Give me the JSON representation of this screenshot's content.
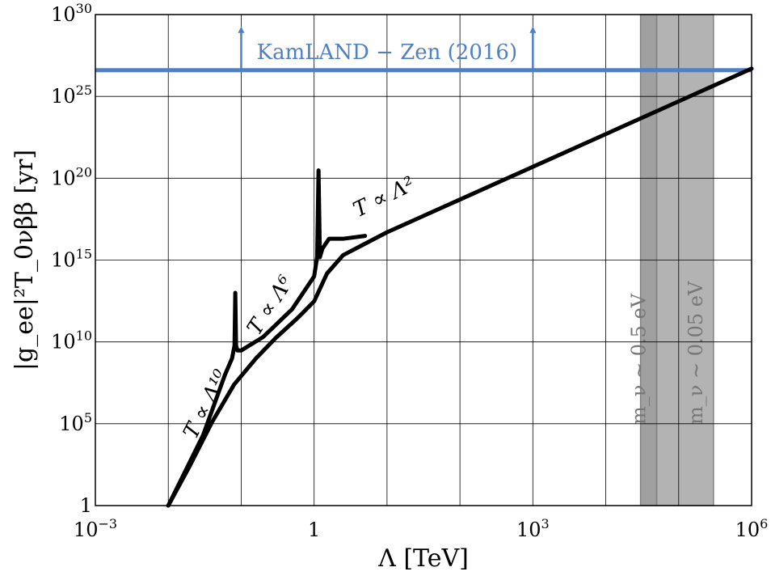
{
  "chart_data": {
    "type": "line",
    "title": "",
    "xlabel": "Λ [TeV]",
    "ylabel": "|g_ee|²T_0νββ [yr]",
    "xscale": "log",
    "yscale": "log",
    "xlim": [
      0.001,
      1000000
    ],
    "ylim": [
      1,
      1e+30
    ],
    "grid": true,
    "x_ticks": [
      {
        "base": "10",
        "exp": "−3"
      },
      {
        "base": "1",
        "exp": ""
      },
      {
        "base": "10",
        "exp": "3"
      },
      {
        "base": "10",
        "exp": "6"
      }
    ],
    "y_ticks": [
      {
        "base": "1",
        "exp": ""
      },
      {
        "base": "10",
        "exp": "5"
      },
      {
        "base": "10",
        "exp": "10"
      },
      {
        "base": "10",
        "exp": "15"
      },
      {
        "base": "10",
        "exp": "20"
      },
      {
        "base": "10",
        "exp": "25"
      },
      {
        "base": "10",
        "exp": "30"
      }
    ],
    "series": [
      {
        "x": [
          0.01,
          0.02,
          0.04,
          0.08,
          0.16,
          0.3,
          0.6,
          1.0,
          1.5,
          2.5,
          5,
          10,
          100,
          1000,
          10000,
          100000,
          1000000
        ],
        "y": [
          1,
          300.0,
          130000.0,
          25000000.0,
          1000000000.0,
          18000000000.0,
          300000000000.0,
          3000000000000.0,
          150000000000000.0,
          2000000000000000.0,
          1e+16,
          5e+16,
          5e+18,
          5e+20,
          5e+22,
          5e+24,
          5e+26
        ],
        "color": "#000000"
      },
      {
        "x": [
          0.01,
          0.03,
          0.06,
          0.075,
          0.081,
          0.083,
          0.085,
          0.089,
          0.1,
          0.2,
          0.5,
          1.0,
          1.1,
          1.15,
          1.2,
          1.3,
          1.6,
          2.5,
          5
        ],
        "y": [
          1,
          20000.0,
          100000000.0,
          1000000000.0,
          6000000000.0,
          10000000000000.0,
          6000000000.0,
          3000000000.0,
          3000000000.0,
          20000000000.0,
          1000000000000.0,
          100000000000000.0,
          1500000000000000.0,
          3e+20,
          1500000000000000.0,
          5000000000000000.0,
          2e+16,
          2e+16,
          3e+16
        ],
        "color": "#000000"
      }
    ],
    "limit": {
      "label": "KamLAND − Zen (2016)",
      "y": 4e+26,
      "x_range": [
        0.1,
        1000
      ],
      "color": "#4f7fc4"
    },
    "bands": [
      {
        "label": "m_ν ∼ 0.5 eV",
        "x_range": [
          30000,
          50000
        ],
        "color": "#a0a0a0"
      },
      {
        "label": "m_ν ∼ 0.05 eV",
        "x_range": [
          50000,
          300000
        ],
        "color": "#b3b3b3"
      }
    ],
    "annotations": [
      {
        "text": "T ∝ Λ¹⁰",
        "x": 0.04,
        "y": 1000000.0
      },
      {
        "text": "T ∝ Λ⁶",
        "x": 0.3,
        "y": 1000000000000.0
      },
      {
        "text": "T ∝ Λ²",
        "x": 10,
        "y": 3e+18
      }
    ]
  }
}
